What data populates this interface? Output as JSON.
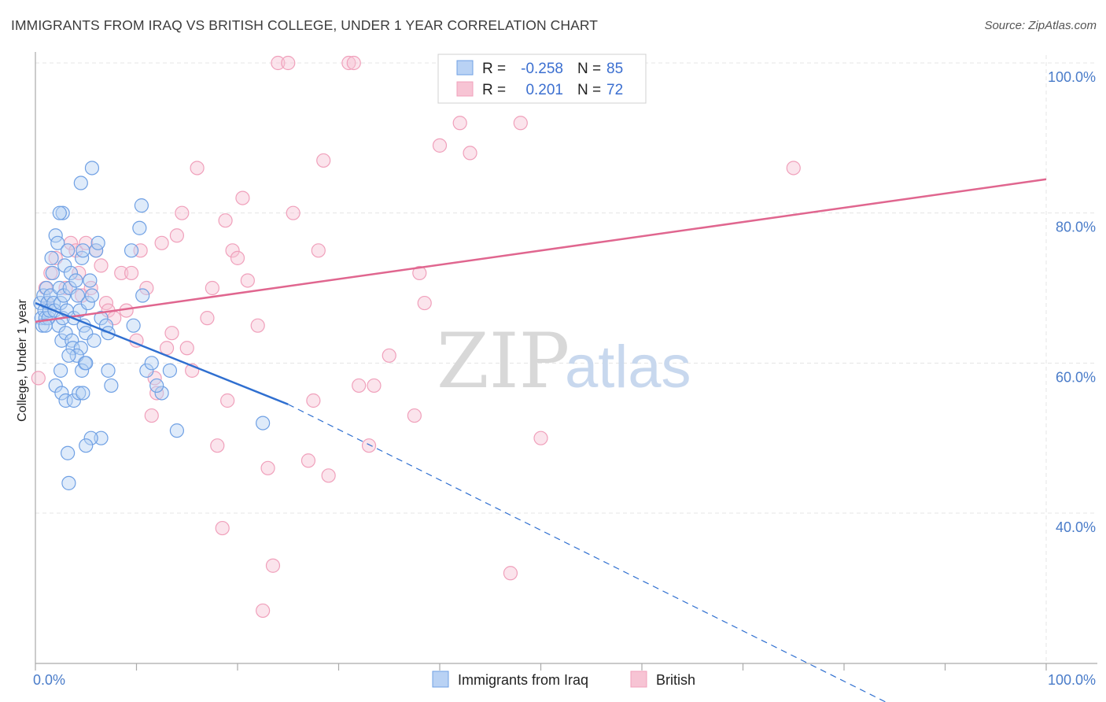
{
  "header": {
    "title": "IMMIGRANTS FROM IRAQ VS BRITISH COLLEGE, UNDER 1 YEAR CORRELATION CHART",
    "source": "Source: ZipAtlas.com"
  },
  "watermark": {
    "zip": "ZIP",
    "atlas": "atlas"
  },
  "legend": {
    "r_label": "R =",
    "n_label": "N =",
    "series": [
      {
        "r": "-0.258",
        "n": "85"
      },
      {
        "r": "0.201",
        "n": "72"
      }
    ]
  },
  "chart_data": {
    "type": "scatter",
    "title": "IMMIGRANTS FROM IRAQ VS BRITISH COLLEGE, UNDER 1 YEAR CORRELATION CHART",
    "xlabel": "",
    "ylabel": "College, Under 1 year",
    "xlim": [
      0,
      100
    ],
    "ylim": [
      20,
      102
    ],
    "x_tick_labels": [
      "0.0%",
      "100.0%"
    ],
    "y_ticks": [
      40,
      60,
      80,
      100
    ],
    "y_tick_labels": [
      "40.0%",
      "60.0%",
      "80.0%",
      "100.0%"
    ],
    "grid": true,
    "legend_position": "top-center",
    "colors": {
      "iraq": "#6fa0e4",
      "british": "#f0a0bb",
      "iraq_line": "#2f6fd0",
      "british_line": "#e0668f"
    },
    "series": [
      {
        "name": "Immigrants from Iraq",
        "r": -0.258,
        "n": 85,
        "trend": {
          "x": [
            0,
            25
          ],
          "y": [
            68,
            54.5
          ],
          "dashed_to": [
            100,
            12
          ]
        },
        "points": [
          [
            0.5,
            68
          ],
          [
            0.6,
            66
          ],
          [
            0.7,
            65
          ],
          [
            0.8,
            69
          ],
          [
            0.9,
            67
          ],
          [
            1.0,
            66
          ],
          [
            1.1,
            70
          ],
          [
            1.2,
            68
          ],
          [
            1.3,
            66
          ],
          [
            1.4,
            67
          ],
          [
            1.5,
            69
          ],
          [
            1.6,
            74
          ],
          [
            1.7,
            72
          ],
          [
            1.8,
            68
          ],
          [
            1.9,
            67
          ],
          [
            2.0,
            77
          ],
          [
            2.2,
            76
          ],
          [
            2.3,
            65
          ],
          [
            2.4,
            70
          ],
          [
            2.5,
            68
          ],
          [
            2.6,
            63
          ],
          [
            2.7,
            66
          ],
          [
            2.8,
            69
          ],
          [
            2.9,
            73
          ],
          [
            3.0,
            64
          ],
          [
            3.1,
            67
          ],
          [
            3.2,
            75
          ],
          [
            3.4,
            70
          ],
          [
            3.5,
            72
          ],
          [
            3.6,
            63
          ],
          [
            3.7,
            62
          ],
          [
            3.8,
            66
          ],
          [
            4.0,
            71
          ],
          [
            4.2,
            69
          ],
          [
            4.4,
            67
          ],
          [
            4.6,
            74
          ],
          [
            4.7,
            75
          ],
          [
            4.8,
            65
          ],
          [
            4.9,
            60
          ],
          [
            5.0,
            64
          ],
          [
            5.2,
            68
          ],
          [
            5.4,
            71
          ],
          [
            5.6,
            69
          ],
          [
            5.8,
            63
          ],
          [
            6.0,
            75
          ],
          [
            6.2,
            76
          ],
          [
            6.5,
            66
          ],
          [
            7.0,
            65
          ],
          [
            7.2,
            64
          ],
          [
            4.5,
            62
          ],
          [
            4.1,
            61
          ],
          [
            3.3,
            61
          ],
          [
            2.5,
            59
          ],
          [
            2.0,
            57
          ],
          [
            2.6,
            56
          ],
          [
            3.0,
            55
          ],
          [
            3.8,
            55
          ],
          [
            4.3,
            56
          ],
          [
            4.7,
            56
          ],
          [
            4.6,
            59
          ],
          [
            5.0,
            60
          ],
          [
            6.5,
            50
          ],
          [
            5.5,
            50
          ],
          [
            5.0,
            49
          ],
          [
            3.2,
            48
          ],
          [
            3.3,
            44
          ],
          [
            4.5,
            84
          ],
          [
            5.6,
            86
          ],
          [
            2.7,
            80
          ],
          [
            2.4,
            80
          ],
          [
            10.5,
            81
          ],
          [
            10.3,
            78
          ],
          [
            9.5,
            75
          ],
          [
            9.7,
            65
          ],
          [
            10.6,
            69
          ],
          [
            11.0,
            59
          ],
          [
            11.5,
            60
          ],
          [
            12.5,
            56
          ],
          [
            12.0,
            57
          ],
          [
            13.3,
            59
          ],
          [
            14.0,
            51
          ],
          [
            22.5,
            52
          ],
          [
            7.5,
            57
          ],
          [
            7.2,
            59
          ],
          [
            1.0,
            65
          ]
        ]
      },
      {
        "name": "British",
        "r": 0.201,
        "n": 72,
        "trend": {
          "x": [
            0,
            100
          ],
          "y": [
            65.5,
            84.5
          ]
        },
        "points": [
          [
            0.3,
            58
          ],
          [
            1.0,
            70
          ],
          [
            1.2,
            68
          ],
          [
            1.5,
            72
          ],
          [
            2.0,
            74
          ],
          [
            3.0,
            70
          ],
          [
            3.5,
            76
          ],
          [
            4.0,
            75
          ],
          [
            4.3,
            72
          ],
          [
            4.6,
            69
          ],
          [
            5.0,
            76
          ],
          [
            5.5,
            70
          ],
          [
            6.0,
            75
          ],
          [
            6.5,
            73
          ],
          [
            7.0,
            68
          ],
          [
            7.2,
            67
          ],
          [
            7.8,
            66
          ],
          [
            8.5,
            72
          ],
          [
            9.0,
            67
          ],
          [
            9.5,
            72
          ],
          [
            10.0,
            63
          ],
          [
            10.4,
            75
          ],
          [
            11.0,
            70
          ],
          [
            11.5,
            53
          ],
          [
            11.8,
            58
          ],
          [
            12.0,
            56
          ],
          [
            12.5,
            76
          ],
          [
            13.0,
            62
          ],
          [
            13.5,
            64
          ],
          [
            14.0,
            77
          ],
          [
            14.5,
            80
          ],
          [
            15.0,
            62
          ],
          [
            15.5,
            59
          ],
          [
            16.0,
            86
          ],
          [
            17.0,
            66
          ],
          [
            17.5,
            70
          ],
          [
            18.0,
            49
          ],
          [
            18.5,
            38
          ],
          [
            18.8,
            79
          ],
          [
            19.0,
            55
          ],
          [
            19.5,
            75
          ],
          [
            20.0,
            74
          ],
          [
            20.5,
            82
          ],
          [
            21.0,
            71
          ],
          [
            22.0,
            65
          ],
          [
            22.5,
            27
          ],
          [
            23.0,
            46
          ],
          [
            23.5,
            33
          ],
          [
            24.0,
            100
          ],
          [
            25.0,
            100
          ],
          [
            25.5,
            80
          ],
          [
            27.0,
            47
          ],
          [
            27.5,
            55
          ],
          [
            28.0,
            75
          ],
          [
            28.5,
            87
          ],
          [
            29.0,
            45
          ],
          [
            31.0,
            100
          ],
          [
            31.5,
            100
          ],
          [
            32.0,
            57
          ],
          [
            33.0,
            49
          ],
          [
            33.5,
            57
          ],
          [
            35.0,
            61
          ],
          [
            37.5,
            53
          ],
          [
            38.0,
            72
          ],
          [
            38.5,
            68
          ],
          [
            40.0,
            89
          ],
          [
            42.0,
            92
          ],
          [
            43.0,
            88
          ],
          [
            47.0,
            32
          ],
          [
            48.0,
            92
          ],
          [
            50.0,
            50
          ],
          [
            75.0,
            86
          ]
        ]
      }
    ]
  },
  "bottom_legend": [
    "Immigrants from Iraq",
    "British"
  ]
}
